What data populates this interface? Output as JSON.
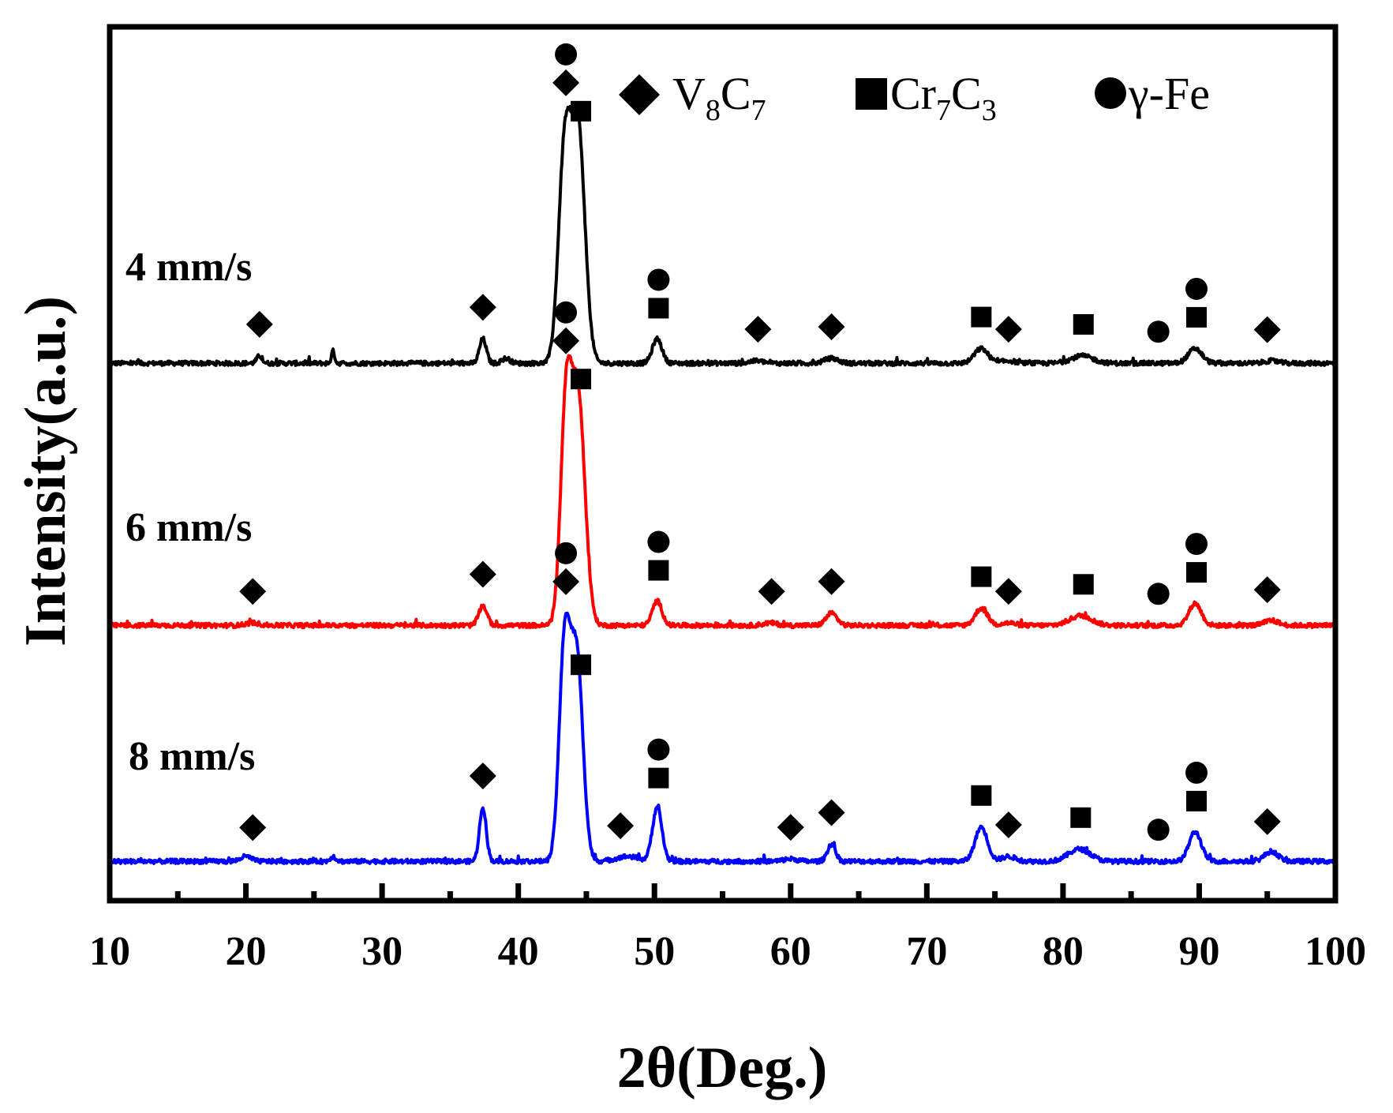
{
  "chart_data": {
    "type": "line",
    "xlabel": "2θ(Deg.)",
    "ylabel": "Intensity(a.u.)",
    "xlim": [
      10,
      100
    ],
    "xticks": [
      "10",
      "20",
      "30",
      "40",
      "50",
      "60",
      "70",
      "80",
      "90",
      "100"
    ],
    "grid": false,
    "legend": {
      "placement": "top-right",
      "entries": [
        {
          "marker": "diamond",
          "base": "V",
          "sub1": "8",
          "mid": "C",
          "sub2": "7"
        },
        {
          "marker": "square",
          "base": "Cr",
          "sub1": "7",
          "mid": "C",
          "sub2": "3"
        },
        {
          "marker": "circle",
          "text": "γ-Fe"
        }
      ]
    },
    "series": [
      {
        "name": "4 mm/s",
        "color": "#000000",
        "baseline": 0.615,
        "peak_scale": 0.28,
        "peaks": [
          [
            21.0,
            0.03,
            0.2
          ],
          [
            26.4,
            0.05,
            0.12
          ],
          [
            37.4,
            0.1,
            0.25
          ],
          [
            39.1,
            0.02,
            0.3
          ],
          [
            43.4,
            0.85,
            0.45
          ],
          [
            44.4,
            0.95,
            0.5
          ],
          [
            50.2,
            0.1,
            0.35
          ],
          [
            57.5,
            0.01,
            0.5
          ],
          [
            63.0,
            0.02,
            0.5
          ],
          [
            74.0,
            0.06,
            0.5
          ],
          [
            76.0,
            0.01,
            0.5
          ],
          [
            81.4,
            0.03,
            0.8
          ],
          [
            89.7,
            0.06,
            0.5
          ],
          [
            95.3,
            0.01,
            0.5
          ]
        ],
        "markers": [
          {
            "x": 21.0,
            "types": [
              "diamond"
            ]
          },
          {
            "x": 37.4,
            "types": [
              "diamond"
            ]
          },
          {
            "x": 43.5,
            "types": [
              "diamond",
              "circle"
            ]
          },
          {
            "x": 44.6,
            "types": [
              "square"
            ]
          },
          {
            "x": 50.3,
            "types": [
              "square",
              "circle"
            ]
          },
          {
            "x": 57.6,
            "types": [
              "diamond"
            ]
          },
          {
            "x": 63.0,
            "types": [
              "diamond"
            ]
          },
          {
            "x": 74.0,
            "types": [
              "square"
            ]
          },
          {
            "x": 76.0,
            "types": [
              "diamond"
            ]
          },
          {
            "x": 81.5,
            "types": [
              "square"
            ]
          },
          {
            "x": 87.0,
            "types": [
              "circle"
            ]
          },
          {
            "x": 89.8,
            "types": [
              "square",
              "circle"
            ]
          },
          {
            "x": 95.0,
            "types": [
              "diamond"
            ]
          }
        ]
      },
      {
        "name": "6 mm/s",
        "color": "#ff0000",
        "baseline": 0.315,
        "peak_scale": 0.28,
        "peaks": [
          [
            20.5,
            0.01,
            0.5
          ],
          [
            37.4,
            0.08,
            0.3
          ],
          [
            43.5,
            0.85,
            0.4
          ],
          [
            44.4,
            0.93,
            0.5
          ],
          [
            50.2,
            0.1,
            0.35
          ],
          [
            58.5,
            0.01,
            0.5
          ],
          [
            63.0,
            0.05,
            0.4
          ],
          [
            74.0,
            0.07,
            0.45
          ],
          [
            76.0,
            0.01,
            0.5
          ],
          [
            81.3,
            0.04,
            0.8
          ],
          [
            89.7,
            0.09,
            0.45
          ],
          [
            95.3,
            0.02,
            0.5
          ]
        ],
        "markers": [
          {
            "x": 20.5,
            "types": [
              "diamond"
            ]
          },
          {
            "x": 37.4,
            "types": [
              "diamond"
            ]
          },
          {
            "x": 43.5,
            "types": [
              "diamond",
              "circle"
            ]
          },
          {
            "x": 44.6,
            "types": [
              "square"
            ]
          },
          {
            "x": 50.3,
            "types": [
              "square",
              "circle"
            ]
          },
          {
            "x": 58.6,
            "types": [
              "diamond"
            ]
          },
          {
            "x": 63.0,
            "types": [
              "diamond"
            ]
          },
          {
            "x": 74.0,
            "types": [
              "square"
            ]
          },
          {
            "x": 76.0,
            "types": [
              "diamond"
            ]
          },
          {
            "x": 81.5,
            "types": [
              "square"
            ]
          },
          {
            "x": 87.0,
            "types": [
              "circle"
            ]
          },
          {
            "x": 89.8,
            "types": [
              "square",
              "circle"
            ]
          },
          {
            "x": 95.0,
            "types": [
              "diamond"
            ]
          }
        ]
      },
      {
        "name": "8 mm/s",
        "color": "#0000ff",
        "baseline": 0.045,
        "peak_scale": 0.28,
        "peaks": [
          [
            20.0,
            0.02,
            0.4
          ],
          [
            26.4,
            0.02,
            0.2
          ],
          [
            37.4,
            0.22,
            0.25
          ],
          [
            43.4,
            0.87,
            0.4
          ],
          [
            44.3,
            0.83,
            0.45
          ],
          [
            48.0,
            0.02,
            0.8
          ],
          [
            50.2,
            0.22,
            0.35
          ],
          [
            60.0,
            0.01,
            0.5
          ],
          [
            63.0,
            0.07,
            0.3
          ],
          [
            74.0,
            0.14,
            0.45
          ],
          [
            76.0,
            0.02,
            0.5
          ],
          [
            81.2,
            0.05,
            0.8
          ],
          [
            89.7,
            0.12,
            0.45
          ],
          [
            95.3,
            0.04,
            0.5
          ]
        ],
        "markers": [
          {
            "x": 20.5,
            "types": [
              "diamond"
            ]
          },
          {
            "x": 37.4,
            "types": [
              "diamond"
            ]
          },
          {
            "x": 43.5,
            "types": [
              "diamond",
              "circle"
            ]
          },
          {
            "x": 44.6,
            "types": [
              "square"
            ]
          },
          {
            "x": 50.3,
            "types": [
              "square",
              "circle"
            ]
          },
          {
            "x": 47.5,
            "types": [
              "diamond"
            ]
          },
          {
            "x": 60.0,
            "types": [
              "diamond"
            ]
          },
          {
            "x": 63.0,
            "types": [
              "diamond"
            ]
          },
          {
            "x": 74.0,
            "types": [
              "square"
            ]
          },
          {
            "x": 76.0,
            "types": [
              "diamond"
            ]
          },
          {
            "x": 81.3,
            "types": [
              "square"
            ]
          },
          {
            "x": 87.0,
            "types": [
              "circle"
            ]
          },
          {
            "x": 89.8,
            "types": [
              "square",
              "circle"
            ]
          },
          {
            "x": 95.0,
            "types": [
              "diamond"
            ]
          }
        ]
      }
    ]
  }
}
